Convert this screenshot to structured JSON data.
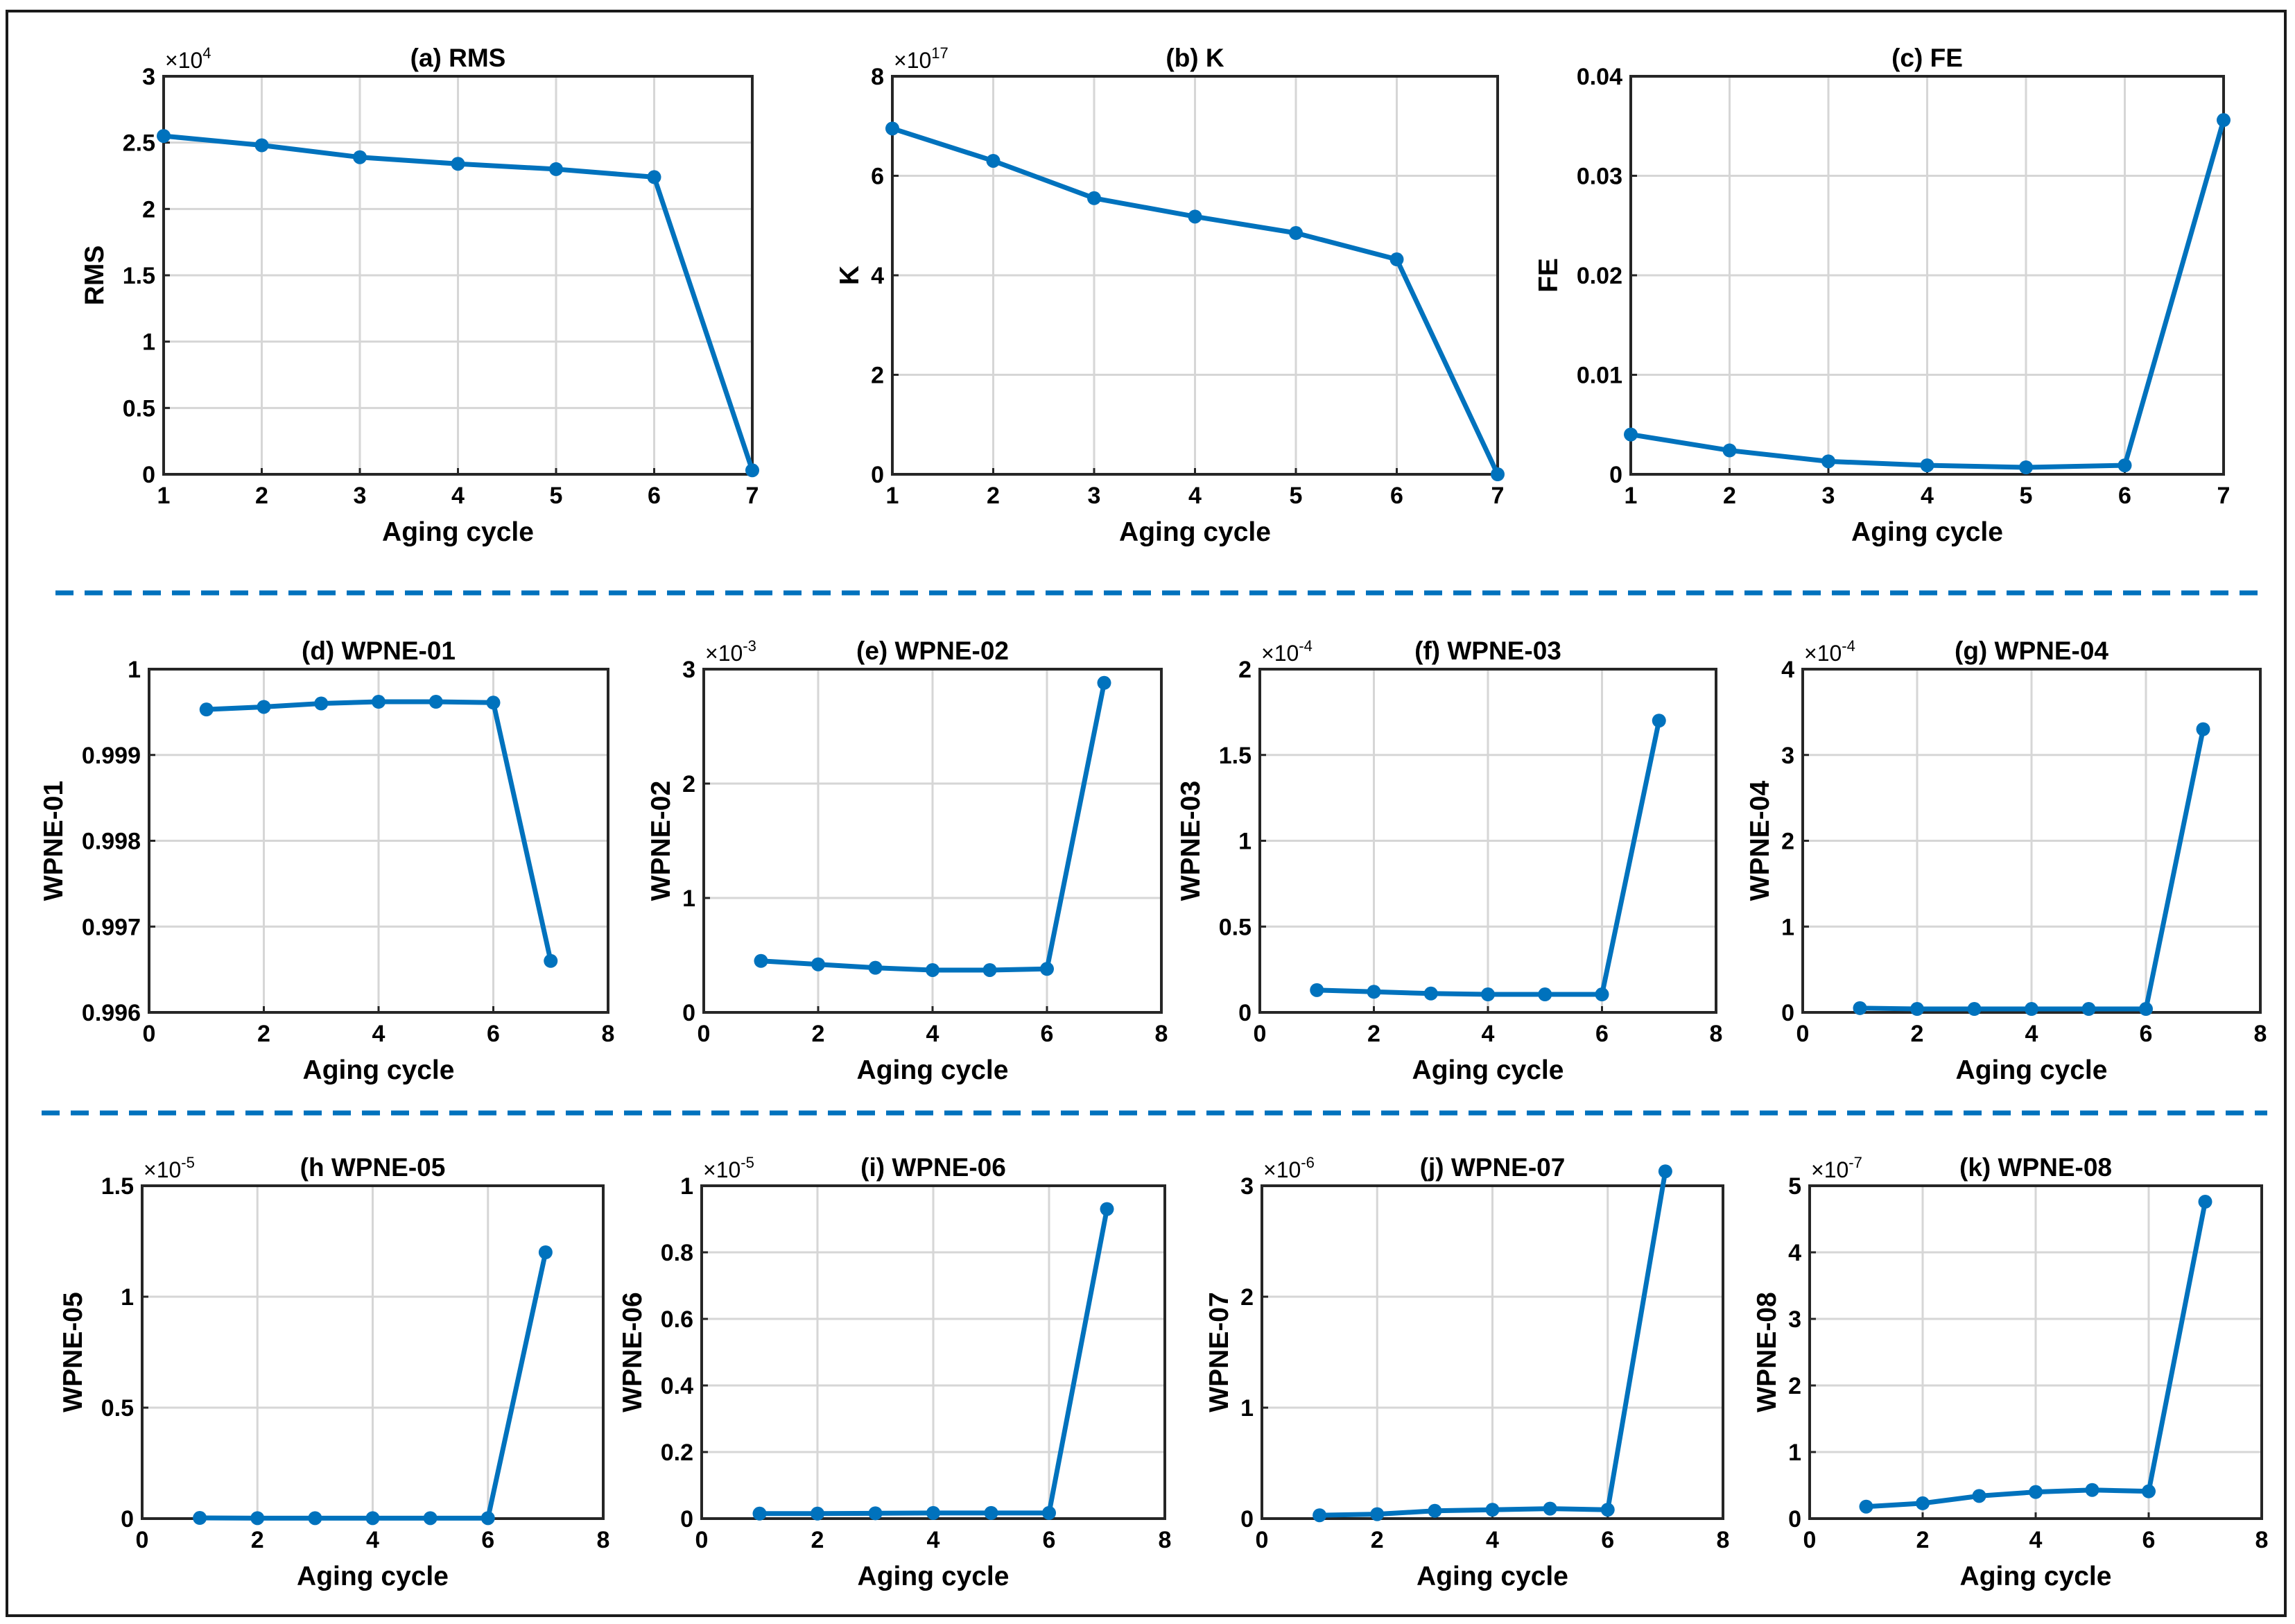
{
  "style": {
    "line_color": "#0072BD",
    "grid_color": "#d6d6d6",
    "axis_color": "#262626",
    "divider_color": "#0072BD"
  },
  "chart_data": [
    {
      "type": "line",
      "title": "(a) RMS",
      "xlabel": "Aging cycle",
      "ylabel": "RMS",
      "x": [
        1,
        2,
        3,
        4,
        5,
        6,
        7
      ],
      "xlim": [
        1,
        7
      ],
      "xticks": [
        1,
        2,
        3,
        4,
        5,
        6,
        7
      ],
      "ylim": [
        0,
        3
      ],
      "yticks": [
        0,
        0.5,
        1,
        1.5,
        2,
        2.5,
        3
      ],
      "ytick_labels": [
        "0",
        "0.5",
        "1",
        "1.5",
        "2",
        "2.5",
        "3"
      ],
      "multiplier": "×10",
      "multiplier_exp": "4",
      "values": [
        2.55,
        2.48,
        2.39,
        2.34,
        2.3,
        2.24,
        0.03
      ]
    },
    {
      "type": "line",
      "title": "(b) K",
      "xlabel": "Aging cycle",
      "ylabel": "K",
      "x": [
        1,
        2,
        3,
        4,
        5,
        6,
        7
      ],
      "xlim": [
        1,
        7
      ],
      "xticks": [
        1,
        2,
        3,
        4,
        5,
        6,
        7
      ],
      "ylim": [
        0,
        8
      ],
      "yticks": [
        0,
        2,
        4,
        6,
        8
      ],
      "ytick_labels": [
        "0",
        "2",
        "4",
        "6",
        "8"
      ],
      "multiplier": "×10",
      "multiplier_exp": "17",
      "values": [
        6.95,
        6.3,
        5.55,
        5.18,
        4.85,
        4.32,
        0.0
      ]
    },
    {
      "type": "line",
      "title": "(c) FE",
      "xlabel": "Aging cycle",
      "ylabel": "FE",
      "x": [
        1,
        2,
        3,
        4,
        5,
        6,
        7
      ],
      "xlim": [
        1,
        7
      ],
      "xticks": [
        1,
        2,
        3,
        4,
        5,
        6,
        7
      ],
      "ylim": [
        0,
        0.04
      ],
      "yticks": [
        0,
        0.01,
        0.02,
        0.03,
        0.04
      ],
      "ytick_labels": [
        "0",
        "0.01",
        "0.02",
        "0.03",
        "0.04"
      ],
      "multiplier": "",
      "multiplier_exp": "",
      "values": [
        0.004,
        0.0024,
        0.0013,
        0.0009,
        0.0007,
        0.0009,
        0.0356
      ]
    },
    {
      "type": "line",
      "title": "(d) WPNE-01",
      "xlabel": "Aging cycle",
      "ylabel": "WPNE-01",
      "x": [
        1,
        2,
        3,
        4,
        5,
        6,
        7
      ],
      "xlim": [
        0,
        8
      ],
      "xticks": [
        0,
        2,
        4,
        6,
        8
      ],
      "ylim": [
        0.996,
        1
      ],
      "yticks": [
        0.996,
        0.997,
        0.998,
        0.999,
        1
      ],
      "ytick_labels": [
        "0.996",
        "0.997",
        "0.998",
        "0.999",
        "1"
      ],
      "multiplier": "",
      "multiplier_exp": "",
      "values": [
        0.99953,
        0.99956,
        0.9996,
        0.99962,
        0.99962,
        0.99961,
        0.9966
      ]
    },
    {
      "type": "line",
      "title": "(e) WPNE-02",
      "xlabel": "Aging cycle",
      "ylabel": "WPNE-02",
      "x": [
        1,
        2,
        3,
        4,
        5,
        6,
        7
      ],
      "xlim": [
        0,
        8
      ],
      "xticks": [
        0,
        2,
        4,
        6,
        8
      ],
      "ylim": [
        0,
        3
      ],
      "yticks": [
        0,
        1,
        2,
        3
      ],
      "ytick_labels": [
        "0",
        "1",
        "2",
        "3"
      ],
      "multiplier": "×10",
      "multiplier_exp": "-3",
      "values": [
        0.45,
        0.42,
        0.39,
        0.37,
        0.37,
        0.38,
        2.88
      ]
    },
    {
      "type": "line",
      "title": "(f) WPNE-03",
      "xlabel": "Aging cycle",
      "ylabel": "WPNE-03",
      "x": [
        1,
        2,
        3,
        4,
        5,
        6,
        7
      ],
      "xlim": [
        0,
        8
      ],
      "xticks": [
        0,
        2,
        4,
        6,
        8
      ],
      "ylim": [
        0,
        2
      ],
      "yticks": [
        0,
        0.5,
        1,
        1.5,
        2
      ],
      "ytick_labels": [
        "0",
        "0.5",
        "1",
        "1.5",
        "2"
      ],
      "multiplier": "×10",
      "multiplier_exp": "-4",
      "values": [
        0.13,
        0.12,
        0.11,
        0.105,
        0.105,
        0.105,
        1.7
      ]
    },
    {
      "type": "line",
      "title": "(g) WPNE-04",
      "xlabel": "Aging cycle",
      "ylabel": "WPNE-04",
      "x": [
        1,
        2,
        3,
        4,
        5,
        6,
        7
      ],
      "xlim": [
        0,
        8
      ],
      "xticks": [
        0,
        2,
        4,
        6,
        8
      ],
      "ylim": [
        0,
        4
      ],
      "yticks": [
        0,
        1,
        2,
        3,
        4
      ],
      "ytick_labels": [
        "0",
        "1",
        "2",
        "3",
        "4"
      ],
      "multiplier": "×10",
      "multiplier_exp": "-4",
      "values": [
        0.05,
        0.04,
        0.04,
        0.04,
        0.04,
        0.04,
        3.3
      ]
    },
    {
      "type": "line",
      "title": "(h WPNE-05",
      "xlabel": "Aging cycle",
      "ylabel": "WPNE-05",
      "x": [
        1,
        2,
        3,
        4,
        5,
        6,
        7
      ],
      "xlim": [
        0,
        8
      ],
      "xticks": [
        0,
        2,
        4,
        6,
        8
      ],
      "ylim": [
        0,
        1.5
      ],
      "yticks": [
        0,
        0.5,
        1,
        1.5
      ],
      "ytick_labels": [
        "0",
        "0.5",
        "1",
        "1.5"
      ],
      "multiplier": "×10",
      "multiplier_exp": "-5",
      "values": [
        0.003,
        0.002,
        0.002,
        0.002,
        0.002,
        0.002,
        1.2
      ]
    },
    {
      "type": "line",
      "title": "(i) WPNE-06",
      "xlabel": "Aging cycle",
      "ylabel": "WPNE-06",
      "x": [
        1,
        2,
        3,
        4,
        5,
        6,
        7
      ],
      "xlim": [
        0,
        8
      ],
      "xticks": [
        0,
        2,
        4,
        6,
        8
      ],
      "ylim": [
        0,
        1
      ],
      "yticks": [
        0,
        0.2,
        0.4,
        0.6,
        0.8,
        1
      ],
      "ytick_labels": [
        "0",
        "0.2",
        "0.4",
        "0.6",
        "0.8",
        "1"
      ],
      "multiplier": "×10",
      "multiplier_exp": "-5",
      "values": [
        0.015,
        0.015,
        0.016,
        0.017,
        0.017,
        0.017,
        0.93
      ]
    },
    {
      "type": "line",
      "title": "(j) WPNE-07",
      "xlabel": "Aging cycle",
      "ylabel": "WPNE-07",
      "x": [
        1,
        2,
        3,
        4,
        5,
        6,
        7
      ],
      "xlim": [
        0,
        8
      ],
      "xticks": [
        0,
        2,
        4,
        6,
        8
      ],
      "ylim": [
        0,
        3
      ],
      "yticks": [
        0,
        1,
        2,
        3
      ],
      "ytick_labels": [
        "0",
        "1",
        "2",
        "3"
      ],
      "multiplier": "×10",
      "multiplier_exp": "-6",
      "values": [
        0.03,
        0.04,
        0.07,
        0.08,
        0.09,
        0.08,
        3.13
      ]
    },
    {
      "type": "line",
      "title": "(k) WPNE-08",
      "xlabel": "Aging cycle",
      "ylabel": "WPNE-08",
      "x": [
        1,
        2,
        3,
        4,
        5,
        6,
        7
      ],
      "xlim": [
        0,
        8
      ],
      "xticks": [
        0,
        2,
        4,
        6,
        8
      ],
      "ylim": [
        0,
        5
      ],
      "yticks": [
        0,
        1,
        2,
        3,
        4,
        5
      ],
      "ytick_labels": [
        "0",
        "1",
        "2",
        "3",
        "4",
        "5"
      ],
      "multiplier": "×10",
      "multiplier_exp": "-7",
      "values": [
        0.18,
        0.23,
        0.34,
        0.4,
        0.43,
        0.41,
        4.76
      ]
    }
  ]
}
